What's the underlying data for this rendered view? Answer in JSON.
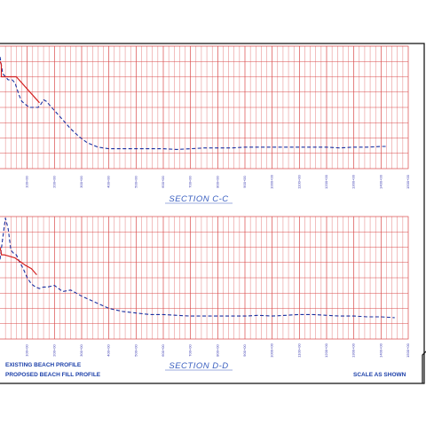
{
  "sheet": {
    "scale_note": "SCALE AS SHOWN",
    "legend": [
      {
        "label": "EXISTING BEACH PROFILE",
        "line_style": "dashed",
        "color": "#1a2fa0"
      },
      {
        "label": "PROPOSED BEACH FILL PROFILE",
        "line_style": "solid",
        "color": "#d42020"
      }
    ],
    "colors": {
      "grid": "#d94848",
      "border": "#1a1a1a",
      "existing": "#1a2fa0",
      "proposed": "#d42020",
      "text": "#1a3ea8"
    }
  },
  "chart_data": [
    {
      "type": "line",
      "title": "SECTION C-C",
      "xlabel": "",
      "ylabel": "",
      "tick_labels": [
        "100+00",
        "200+00",
        "300+00",
        "400+00",
        "500+00",
        "600+00",
        "700+00",
        "800+00",
        "900+00",
        "1000+00",
        "1100+00",
        "1200+00",
        "1300+00",
        "1400+00",
        "1500+00"
      ],
      "ylim": [
        0,
        8
      ],
      "series": [
        {
          "style": "existing",
          "x": [
            0,
            10,
            30,
            45,
            55,
            70,
            80,
            100,
            110,
            125,
            140,
            150,
            160,
            170,
            200,
            230,
            260,
            290,
            320,
            360,
            400,
            450,
            500,
            550,
            600,
            650,
            700,
            750,
            800,
            850,
            900,
            950,
            1000,
            1050,
            1100,
            1150,
            1200,
            1250,
            1300,
            1350,
            1400,
            1420
          ],
          "y": [
            7.3,
            6.2,
            5.8,
            5.8,
            5.6,
            4.8,
            4.4,
            4.1,
            4.0,
            4.0,
            4.0,
            4.2,
            4.5,
            4.4,
            3.8,
            3.2,
            2.6,
            2.1,
            1.7,
            1.4,
            1.3,
            1.3,
            1.3,
            1.3,
            1.3,
            1.25,
            1.3,
            1.35,
            1.35,
            1.35,
            1.4,
            1.4,
            1.4,
            1.4,
            1.4,
            1.4,
            1.4,
            1.35,
            1.4,
            1.4,
            1.45,
            1.45
          ]
        },
        {
          "style": "proposed",
          "x": [
            0,
            5,
            5,
            10,
            20,
            55,
            60,
            145
          ],
          "y": [
            7.0,
            6.8,
            6.0,
            6.0,
            6.0,
            6.0,
            6.0,
            4.3
          ]
        }
      ]
    },
    {
      "type": "line",
      "title": "SECTION D-D",
      "xlabel": "",
      "ylabel": "",
      "tick_labels": [
        "100+00",
        "200+00",
        "300+00",
        "400+00",
        "500+00",
        "600+00",
        "700+00",
        "800+00",
        "900+00",
        "1000+00",
        "1100+00",
        "1200+00",
        "1300+00",
        "1400+00",
        "1500+00"
      ],
      "ylim": [
        0,
        8
      ],
      "series": [
        {
          "style": "existing",
          "x": [
            0,
            10,
            20,
            30,
            40,
            50,
            60,
            70,
            85,
            100,
            115,
            130,
            145,
            160,
            175,
            200,
            230,
            260,
            300,
            350,
            400,
            450,
            500,
            550,
            600,
            650,
            700,
            750,
            800,
            850,
            900,
            950,
            1000,
            1050,
            1100,
            1150,
            1200,
            1250,
            1300,
            1350,
            1400,
            1450
          ],
          "y": [
            5.2,
            6.6,
            7.9,
            7.2,
            5.8,
            5.6,
            5.5,
            5.1,
            4.6,
            4.0,
            3.6,
            3.4,
            3.3,
            3.4,
            3.4,
            3.5,
            3.1,
            3.2,
            2.8,
            2.4,
            2.0,
            1.8,
            1.7,
            1.6,
            1.6,
            1.55,
            1.5,
            1.5,
            1.5,
            1.5,
            1.5,
            1.55,
            1.5,
            1.55,
            1.6,
            1.6,
            1.55,
            1.5,
            1.5,
            1.45,
            1.45,
            1.4
          ]
        },
        {
          "style": "proposed",
          "x": [
            0,
            5,
            5,
            15,
            55,
            95,
            115,
            135
          ],
          "y": [
            6.0,
            5.6,
            5.5,
            5.5,
            5.3,
            4.8,
            4.6,
            4.2
          ]
        }
      ]
    }
  ]
}
